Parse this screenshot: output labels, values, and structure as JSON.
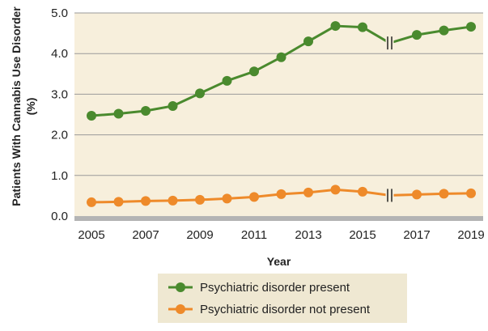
{
  "chart_data": {
    "type": "line",
    "title": "",
    "xlabel": "Year",
    "ylabel": "Patients With Cannabis Use Disorder (%)",
    "ylabel_lines": [
      "Patients With Cannabis Use",
      "Disorder (%)"
    ],
    "x": [
      2005,
      2006,
      2007,
      2008,
      2009,
      2010,
      2011,
      2012,
      2013,
      2014,
      2015,
      2016,
      2017,
      2018,
      2019
    ],
    "xticks": [
      "2005",
      "2007",
      "2009",
      "2011",
      "2013",
      "2015",
      "2017",
      "2019"
    ],
    "yticks": [
      "0.0",
      "1.0",
      "2.0",
      "3.0",
      "4.0",
      "5.0"
    ],
    "xlim": [
      2005,
      2019
    ],
    "ylim": [
      0,
      5
    ],
    "grid": true,
    "break_at": 2016,
    "legend_position": "bottom-center",
    "series": [
      {
        "name": "Psychiatric disorder present",
        "color": "#4a8a2e",
        "values": [
          2.47,
          2.52,
          2.59,
          2.71,
          3.02,
          3.33,
          3.56,
          3.91,
          4.3,
          4.68,
          4.65,
          4.26,
          4.46,
          4.57,
          4.66
        ]
      },
      {
        "name": "Psychiatric disorder not present",
        "color": "#ee8a2a",
        "values": [
          0.34,
          0.35,
          0.37,
          0.38,
          0.4,
          0.43,
          0.47,
          0.54,
          0.58,
          0.65,
          0.6,
          0.51,
          0.53,
          0.55,
          0.56
        ]
      }
    ],
    "colors": {
      "plot_bg": "#f7efdc",
      "grid": "#9a9a9a",
      "baseline": "#b4b4b4",
      "legend_bg": "#efe8d2"
    }
  }
}
